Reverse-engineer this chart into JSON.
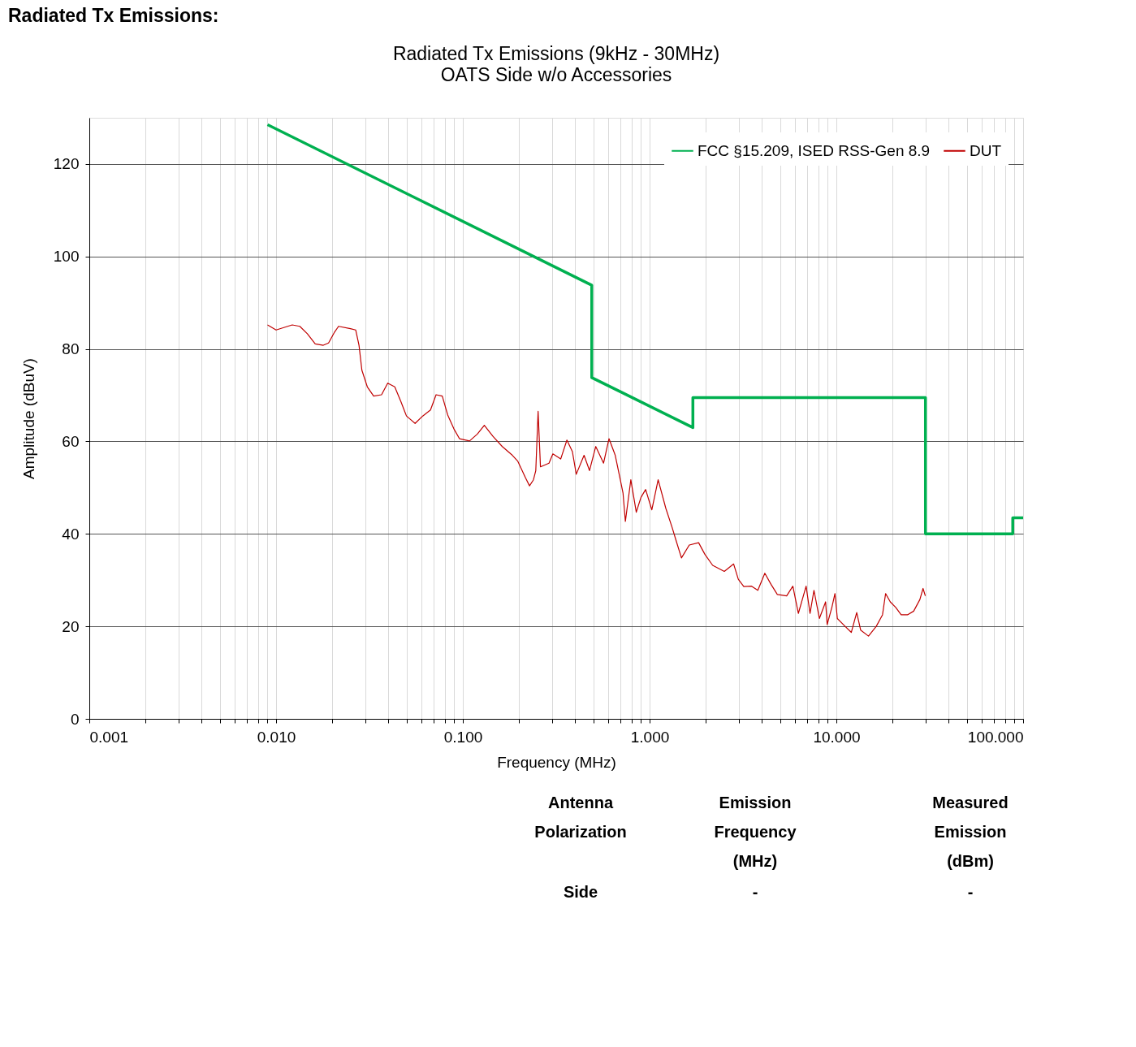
{
  "chart_data": {
    "type": "line",
    "title": "Radiated Tx Emissions (9kHz - 30MHz)",
    "subtitle": "OATS Side w/o Accessories",
    "xlabel": "Frequency (MHz)",
    "ylabel": "Amplitude (dBuV)",
    "log": "x",
    "grid": true,
    "legend": "top right",
    "xlim": [
      0.001,
      100
    ],
    "ylim": [
      0,
      130
    ],
    "xticks": [
      {
        "value": 0.001,
        "label": "0.001"
      },
      {
        "value": 0.002,
        "label": null
      },
      {
        "value": 0.003,
        "label": null
      },
      {
        "value": 0.004,
        "label": null
      },
      {
        "value": 0.005,
        "label": null
      },
      {
        "value": 0.006,
        "label": null
      },
      {
        "value": 0.007,
        "label": null
      },
      {
        "value": 0.008,
        "label": null
      },
      {
        "value": 0.009,
        "label": null
      },
      {
        "value": 0.01,
        "label": "0.010"
      },
      {
        "value": 0.02,
        "label": null
      },
      {
        "value": 0.03,
        "label": null
      },
      {
        "value": 0.04,
        "label": null
      },
      {
        "value": 0.05,
        "label": null
      },
      {
        "value": 0.06,
        "label": null
      },
      {
        "value": 0.07,
        "label": null
      },
      {
        "value": 0.08,
        "label": null
      },
      {
        "value": 0.09,
        "label": null
      },
      {
        "value": 0.1,
        "label": "0.100"
      },
      {
        "value": 0.2,
        "label": null
      },
      {
        "value": 0.3,
        "label": null
      },
      {
        "value": 0.4,
        "label": null
      },
      {
        "value": 0.5,
        "label": null
      },
      {
        "value": 0.6,
        "label": null
      },
      {
        "value": 0.7,
        "label": null
      },
      {
        "value": 0.8,
        "label": null
      },
      {
        "value": 0.9,
        "label": null
      },
      {
        "value": 1,
        "label": "1.000"
      },
      {
        "value": 2,
        "label": null
      },
      {
        "value": 3,
        "label": null
      },
      {
        "value": 4,
        "label": null
      },
      {
        "value": 5,
        "label": null
      },
      {
        "value": 6,
        "label": null
      },
      {
        "value": 7,
        "label": null
      },
      {
        "value": 8,
        "label": null
      },
      {
        "value": 9,
        "label": null
      },
      {
        "value": 10,
        "label": "10.000"
      },
      {
        "value": 20,
        "label": null
      },
      {
        "value": 30,
        "label": null
      },
      {
        "value": 40,
        "label": null
      },
      {
        "value": 50,
        "label": null
      },
      {
        "value": 60,
        "label": null
      },
      {
        "value": 70,
        "label": null
      },
      {
        "value": 80,
        "label": null
      },
      {
        "value": 90,
        "label": null
      },
      {
        "value": 100,
        "label": "100.000"
      }
    ],
    "yticks": [
      0,
      20,
      40,
      60,
      80,
      100,
      120
    ],
    "series": [
      {
        "name": "FCC §15.209, ISED RSS-Gen 8.9",
        "color": "#00b050",
        "x": [
          0.009,
          0.49,
          0.49,
          1.705,
          1.705,
          30,
          30,
          88,
          88,
          100
        ],
        "values": [
          128.5,
          93.8,
          73.8,
          63.0,
          69.5,
          69.5,
          40,
          40,
          43.5,
          43.5
        ]
      },
      {
        "name": "DUT",
        "color": "#c00000",
        "x": [
          0.009,
          0.01,
          0.0122,
          0.0134,
          0.0147,
          0.0162,
          0.0179,
          0.0191,
          0.0206,
          0.0216,
          0.025,
          0.0267,
          0.0278,
          0.0288,
          0.0308,
          0.0333,
          0.0367,
          0.0396,
          0.0432,
          0.0467,
          0.0499,
          0.0555,
          0.061,
          0.0671,
          0.0719,
          0.0776,
          0.083,
          0.0896,
          0.0959,
          0.1086,
          0.1196,
          0.1303,
          0.1449,
          0.1626,
          0.1842,
          0.197,
          0.2168,
          0.2275,
          0.2388,
          0.2458,
          0.2529,
          0.2604,
          0.2893,
          0.3034,
          0.3342,
          0.3608,
          0.386,
          0.4048,
          0.4457,
          0.4766,
          0.5149,
          0.5668,
          0.6061,
          0.6546,
          0.6871,
          0.7207,
          0.7417,
          0.7933,
          0.8486,
          0.8989,
          0.9522,
          1.028,
          1.111,
          1.222,
          1.32,
          1.385,
          1.481,
          1.631,
          1.83,
          1.976,
          2.176,
          2.512,
          2.818,
          2.985,
          3.194,
          3.516,
          3.797,
          4.14,
          4.467,
          4.83,
          5.418,
          5.848,
          6.258,
          6.887,
          7.228,
          7.586,
          8.11,
          8.758,
          8.928,
          9.458,
          9.83,
          10.12,
          11.14,
          12.02,
          12.85,
          13.49,
          14.86,
          16.35,
          17.66,
          18.35,
          19.44,
          20.8,
          22.23,
          24.02,
          25.94,
          28.0,
          29.11,
          29.95
        ],
        "values": [
          85.2,
          84.1,
          85.2,
          84.9,
          83.3,
          81.1,
          80.8,
          81.3,
          83.7,
          84.9,
          84.4,
          84.1,
          80.8,
          75.4,
          71.8,
          69.8,
          70.1,
          72.6,
          71.8,
          68.5,
          65.5,
          63.9,
          65.5,
          66.8,
          70.1,
          69.8,
          65.7,
          62.7,
          60.6,
          60.1,
          61.6,
          63.5,
          61.1,
          58.9,
          57.0,
          55.7,
          52.1,
          50.4,
          51.7,
          53.7,
          66.5,
          54.5,
          55.3,
          57.3,
          56.2,
          60.3,
          57.8,
          52.9,
          57.0,
          53.7,
          58.9,
          55.3,
          60.6,
          57.0,
          52.9,
          48.8,
          42.7,
          51.7,
          44.7,
          47.9,
          49.6,
          45.2,
          51.7,
          45.5,
          41.4,
          38.6,
          34.8,
          37.6,
          38.1,
          35.6,
          33.2,
          31.9,
          33.5,
          30.2,
          28.6,
          28.7,
          27.8,
          31.5,
          29.1,
          26.9,
          26.6,
          28.7,
          22.8,
          28.7,
          22.8,
          27.8,
          21.7,
          25.3,
          20.4,
          24.1,
          27.1,
          21.7,
          20.0,
          18.7,
          23.0,
          19.2,
          17.9,
          20.0,
          22.5,
          27.1,
          25.3,
          24.1,
          22.5,
          22.5,
          23.3,
          25.8,
          28.2,
          26.6
        ]
      }
    ],
    "annotations": [
      "Radiated Tx Emissions:",
      "Antenna Polarization",
      "Side",
      "Emission Frequency (MHz)",
      "-",
      "Measured Emission (dBm)",
      "-"
    ]
  }
}
